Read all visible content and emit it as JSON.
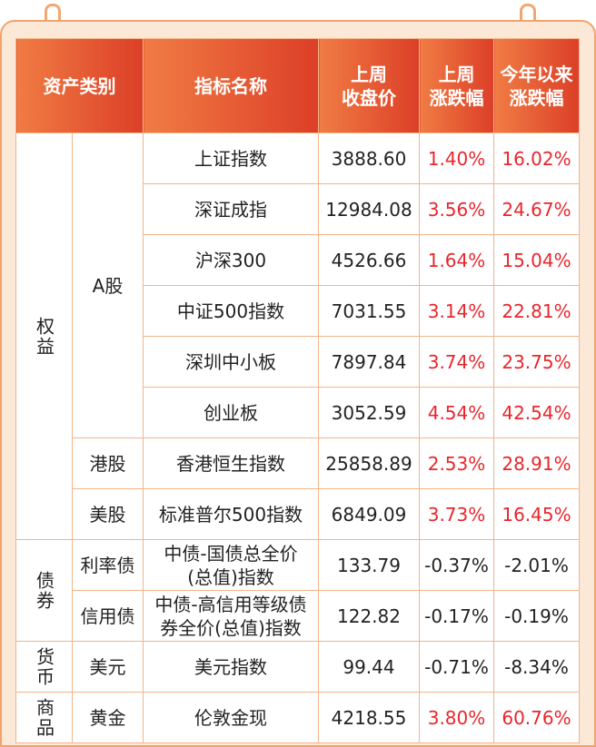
{
  "header": [
    [
      "资产类别"
    ],
    [
      "指标名称"
    ],
    [
      "上周",
      "收盘价"
    ],
    [
      "上周",
      "涨跌幅"
    ],
    [
      "今年以来",
      "涨跌幅"
    ]
  ],
  "groups": [
    {
      "category": "权益",
      "subgroups": [
        {
          "name": "A股",
          "rows": [
            {
              "index": "上证指数",
              "close": "3888.60",
              "week": "1.40%",
              "ytd": "16.02%"
            },
            {
              "index": "深证成指",
              "close": "12984.08",
              "week": "3.56%",
              "ytd": "24.67%"
            },
            {
              "index": "沪深300",
              "close": "4526.66",
              "week": "1.64%",
              "ytd": "15.04%"
            },
            {
              "index": "中证500指数",
              "close": "7031.55",
              "week": "3.14%",
              "ytd": "22.81%"
            },
            {
              "index": "深圳中小板",
              "close": "7897.84",
              "week": "3.74%",
              "ytd": "23.75%"
            },
            {
              "index": "创业板",
              "close": "3052.59",
              "week": "4.54%",
              "ytd": "42.54%"
            }
          ]
        },
        {
          "name": "港股",
          "rows": [
            {
              "index": "香港恒生指数",
              "close": "25858.89",
              "week": "2.53%",
              "ytd": "28.91%"
            }
          ]
        },
        {
          "name": "美股",
          "rows": [
            {
              "index": "标准普尔500指数",
              "close": "6849.09",
              "week": "3.73%",
              "ytd": "16.45%"
            }
          ]
        }
      ]
    },
    {
      "category": "债券",
      "subgroups": [
        {
          "name": "利率债",
          "rows": [
            {
              "index": [
                "中债-国债总全价",
                "(总值)指数"
              ],
              "close": "133.79",
              "week": "-0.37%",
              "ytd": "-2.01%"
            }
          ]
        },
        {
          "name": "信用债",
          "rows": [
            {
              "index": [
                "中债-高信用等级债",
                "券全价(总值)指数"
              ],
              "close": "122.82",
              "week": "-0.17%",
              "ytd": "-0.19%"
            }
          ]
        }
      ]
    },
    {
      "category": "货币",
      "subgroups": [
        {
          "name": "美元",
          "rows": [
            {
              "index": "美元指数",
              "close": "99.44",
              "week": "-0.71%",
              "ytd": "-8.34%"
            }
          ]
        }
      ]
    },
    {
      "category": "商品",
      "subgroups": [
        {
          "name": "黄金",
          "rows": [
            {
              "index": "伦敦金现",
              "close": "4218.55",
              "week": "3.80%",
              "ytd": "60.76%"
            }
          ]
        }
      ]
    }
  ],
  "positive_color": "#e8262c",
  "negative_color": "#222222"
}
